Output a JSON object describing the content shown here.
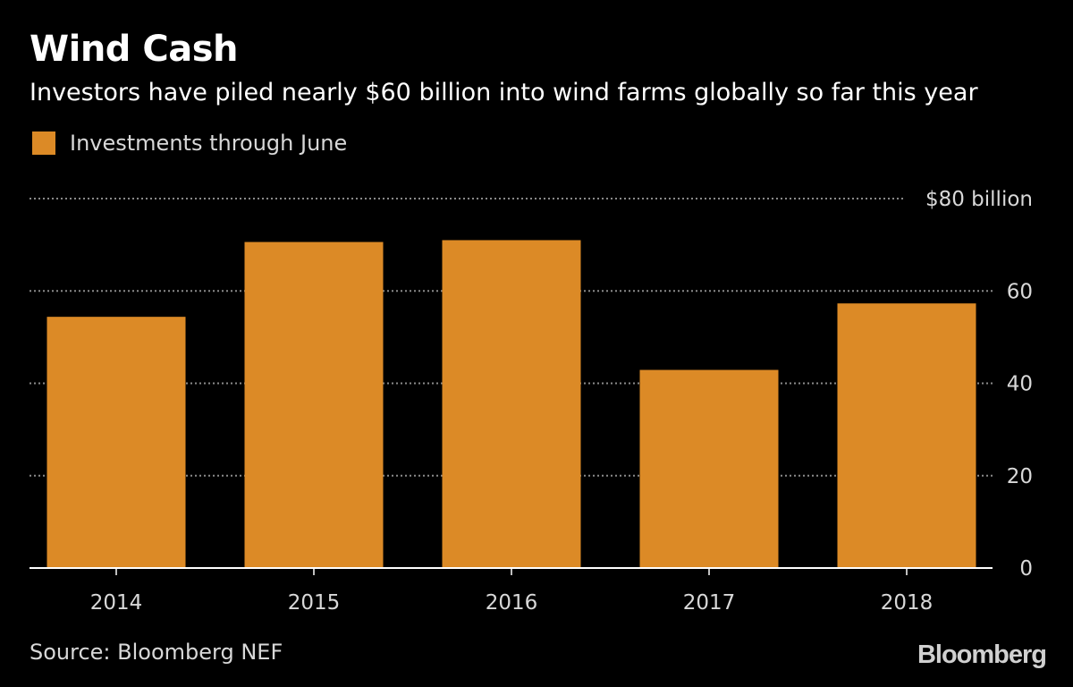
{
  "chart_data": {
    "type": "bar",
    "title": "Wind Cash",
    "subtitle": "Investors have piled nearly $60 billion into wind farms globally so far this year",
    "categories": [
      "2014",
      "2015",
      "2016",
      "2017",
      "2018"
    ],
    "series": [
      {
        "name": "Investments through June",
        "values": [
          54.4,
          70.6,
          71.0,
          42.9,
          57.3
        ]
      }
    ],
    "ylim": [
      0,
      80
    ],
    "yticks": [
      0,
      20,
      40,
      60,
      80
    ],
    "ytick_labels": [
      "0",
      "20",
      "40",
      "60",
      "$80 billion"
    ],
    "grid": true,
    "legend": "top-left",
    "y_axis_side": "right",
    "bar_color": "#dc8a26",
    "source": "Source: Bloomberg NEF",
    "logo": "Bloomberg"
  }
}
